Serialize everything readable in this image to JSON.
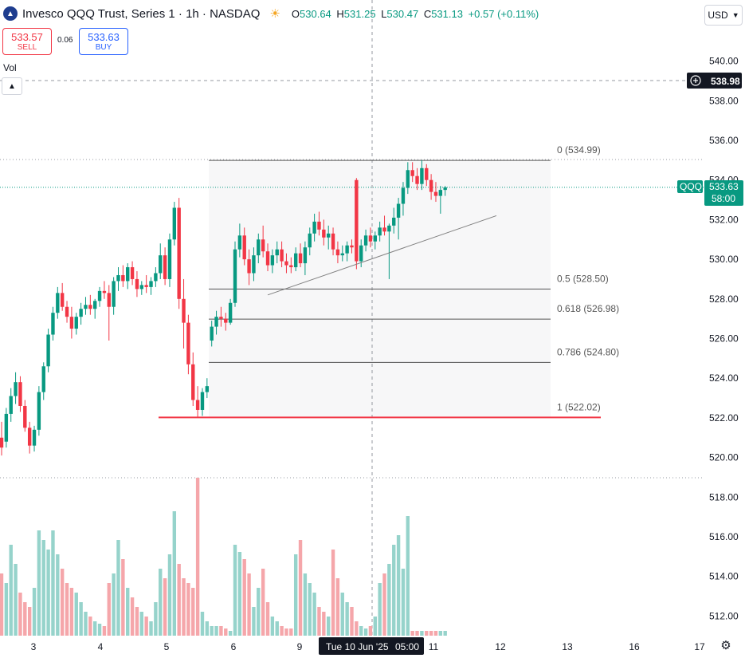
{
  "header": {
    "symbol_title": "Invesco QQQ Trust, Series 1 · 1h · NASDAQ",
    "sun_icon": "sun-icon",
    "ohlc": [
      {
        "k": "O",
        "v": "530.64"
      },
      {
        "k": "H",
        "v": "531.25"
      },
      {
        "k": "L",
        "v": "530.47"
      },
      {
        "k": "C",
        "v": "531.13"
      }
    ],
    "change": "+0.57 (+0.11%)"
  },
  "trade": {
    "sell_price": "533.57",
    "sell_label": "SELL",
    "spread": "0.06",
    "buy_price": "533.63",
    "buy_label": "BUY"
  },
  "vol_label": "Vol",
  "collapse_icon": "chevron-up-icon",
  "currency": "USD",
  "colors": {
    "up": "#089981",
    "down": "#f23645",
    "vol_up": "#96d3cb",
    "vol_down": "#f5a6aa",
    "axis_text": "#131722"
  },
  "axis": {
    "price_ticks": [
      "540.00",
      "538.00",
      "536.00",
      "534.00",
      "532.00",
      "530.00",
      "528.00",
      "526.00",
      "524.00",
      "522.00",
      "520.00",
      "518.00",
      "516.00",
      "514.00",
      "512.00"
    ],
    "date_ticks": [
      "3",
      "4",
      "5",
      "6",
      "9",
      "11",
      "12",
      "13",
      "16",
      "17"
    ],
    "crosshair_date": "Tue 10 Jun '25",
    "crosshair_time": "05:00",
    "crosshair_price": "538.98",
    "last_symbol": "QQQ",
    "last_price": "533.63",
    "countdown": "58:00"
  },
  "fib_levels": [
    {
      "label": "0 (534.99)",
      "price": 534.99
    },
    {
      "label": "0.5 (528.50)",
      "price": 528.5
    },
    {
      "label": "0.618 (526.98)",
      "price": 526.98
    },
    {
      "label": "0.786 (524.80)",
      "price": 524.8
    },
    {
      "label": "1 (522.02)",
      "price": 522.02
    }
  ],
  "chart_data": {
    "type": "candlestick",
    "price_unit": "USD",
    "candles": [
      {
        "o": 521.0,
        "h": 521.8,
        "l": 520.1,
        "c": 520.5
      },
      {
        "o": 520.8,
        "h": 522.5,
        "l": 520.5,
        "c": 522.2
      },
      {
        "o": 522.2,
        "h": 523.5,
        "l": 521.8,
        "c": 523.1
      },
      {
        "o": 523.1,
        "h": 524.3,
        "l": 522.7,
        "c": 523.8
      },
      {
        "o": 523.8,
        "h": 524.1,
        "l": 522.3,
        "c": 522.6
      },
      {
        "o": 522.6,
        "h": 522.9,
        "l": 521.3,
        "c": 521.5
      },
      {
        "o": 521.5,
        "h": 521.8,
        "l": 520.2,
        "c": 520.6
      },
      {
        "o": 520.6,
        "h": 521.6,
        "l": 520.3,
        "c": 521.4
      },
      {
        "o": 521.4,
        "h": 523.6,
        "l": 521.1,
        "c": 523.3
      },
      {
        "o": 523.3,
        "h": 524.8,
        "l": 522.9,
        "c": 524.6
      },
      {
        "o": 524.6,
        "h": 526.5,
        "l": 524.3,
        "c": 526.2
      },
      {
        "o": 526.2,
        "h": 527.6,
        "l": 525.9,
        "c": 527.3
      },
      {
        "o": 527.3,
        "h": 528.6,
        "l": 527.0,
        "c": 528.3
      },
      {
        "o": 528.3,
        "h": 528.8,
        "l": 527.4,
        "c": 527.6
      },
      {
        "o": 527.6,
        "h": 527.9,
        "l": 526.8,
        "c": 527.1
      },
      {
        "o": 527.1,
        "h": 527.6,
        "l": 526.0,
        "c": 526.5
      },
      {
        "o": 526.5,
        "h": 527.3,
        "l": 526.2,
        "c": 527.1
      },
      {
        "o": 527.1,
        "h": 527.8,
        "l": 526.7,
        "c": 527.5
      },
      {
        "o": 527.5,
        "h": 528.1,
        "l": 527.2,
        "c": 527.7
      },
      {
        "o": 527.7,
        "h": 528.2,
        "l": 527.2,
        "c": 527.5
      },
      {
        "o": 527.5,
        "h": 528.0,
        "l": 527.0,
        "c": 527.9
      },
      {
        "o": 527.9,
        "h": 528.6,
        "l": 527.6,
        "c": 528.4
      },
      {
        "o": 528.4,
        "h": 528.9,
        "l": 528.0,
        "c": 528.3
      },
      {
        "o": 528.3,
        "h": 528.7,
        "l": 525.9,
        "c": 527.6
      },
      {
        "o": 527.6,
        "h": 529.1,
        "l": 527.2,
        "c": 528.9
      },
      {
        "o": 528.9,
        "h": 529.6,
        "l": 528.4,
        "c": 529.2
      },
      {
        "o": 529.2,
        "h": 529.7,
        "l": 528.6,
        "c": 528.9
      },
      {
        "o": 528.9,
        "h": 529.8,
        "l": 528.5,
        "c": 529.6
      },
      {
        "o": 529.6,
        "h": 529.9,
        "l": 528.7,
        "c": 529.0
      },
      {
        "o": 529.0,
        "h": 529.4,
        "l": 528.1,
        "c": 528.5
      },
      {
        "o": 528.5,
        "h": 528.9,
        "l": 528.2,
        "c": 528.7
      },
      {
        "o": 528.7,
        "h": 529.2,
        "l": 528.3,
        "c": 528.6
      },
      {
        "o": 528.6,
        "h": 529.1,
        "l": 528.2,
        "c": 528.9
      },
      {
        "o": 528.9,
        "h": 529.6,
        "l": 528.6,
        "c": 529.3
      },
      {
        "o": 529.3,
        "h": 530.8,
        "l": 529.0,
        "c": 530.2
      },
      {
        "o": 530.2,
        "h": 530.6,
        "l": 528.7,
        "c": 529.0
      },
      {
        "o": 529.0,
        "h": 531.3,
        "l": 528.6,
        "c": 531.0
      },
      {
        "o": 531.0,
        "h": 532.9,
        "l": 530.7,
        "c": 532.6
      },
      {
        "o": 532.6,
        "h": 533.1,
        "l": 527.5,
        "c": 528.0
      },
      {
        "o": 528.0,
        "h": 529.0,
        "l": 525.5,
        "c": 526.8
      },
      {
        "o": 526.8,
        "h": 527.2,
        "l": 524.2,
        "c": 524.7
      },
      {
        "o": 524.7,
        "h": 525.3,
        "l": 522.6,
        "c": 522.9
      },
      {
        "o": 522.9,
        "h": 523.6,
        "l": 522.0,
        "c": 522.4
      },
      {
        "o": 522.4,
        "h": 523.5,
        "l": 522.1,
        "c": 523.3
      },
      {
        "o": 523.3,
        "h": 524.0,
        "l": 523.0,
        "c": 523.6
      },
      {
        "o": 525.9,
        "h": 526.9,
        "l": 525.6,
        "c": 526.6
      },
      {
        "o": 526.6,
        "h": 527.4,
        "l": 526.2,
        "c": 527.1
      },
      {
        "o": 527.1,
        "h": 527.6,
        "l": 526.6,
        "c": 527.0
      },
      {
        "o": 527.0,
        "h": 527.3,
        "l": 526.4,
        "c": 526.8
      },
      {
        "o": 526.8,
        "h": 528.0,
        "l": 526.7,
        "c": 527.8
      },
      {
        "o": 527.8,
        "h": 530.9,
        "l": 527.6,
        "c": 530.5
      },
      {
        "o": 530.5,
        "h": 531.8,
        "l": 530.1,
        "c": 531.2
      },
      {
        "o": 531.2,
        "h": 531.6,
        "l": 529.7,
        "c": 530.0
      },
      {
        "o": 530.0,
        "h": 530.5,
        "l": 528.7,
        "c": 529.3
      },
      {
        "o": 529.3,
        "h": 530.6,
        "l": 528.9,
        "c": 530.2
      },
      {
        "o": 530.2,
        "h": 531.3,
        "l": 529.8,
        "c": 531.0
      },
      {
        "o": 531.0,
        "h": 531.7,
        "l": 530.1,
        "c": 530.4
      },
      {
        "o": 530.4,
        "h": 530.8,
        "l": 529.4,
        "c": 529.7
      },
      {
        "o": 529.7,
        "h": 530.5,
        "l": 529.3,
        "c": 530.2
      },
      {
        "o": 530.2,
        "h": 530.9,
        "l": 529.8,
        "c": 530.5
      },
      {
        "o": 530.5,
        "h": 530.9,
        "l": 529.6,
        "c": 529.9
      },
      {
        "o": 529.9,
        "h": 530.3,
        "l": 529.3,
        "c": 529.7
      },
      {
        "o": 529.7,
        "h": 530.1,
        "l": 529.3,
        "c": 529.6
      },
      {
        "o": 529.6,
        "h": 530.6,
        "l": 529.4,
        "c": 530.3
      },
      {
        "o": 530.3,
        "h": 530.8,
        "l": 529.6,
        "c": 529.8
      },
      {
        "o": 529.8,
        "h": 530.9,
        "l": 529.2,
        "c": 530.6
      },
      {
        "o": 530.6,
        "h": 531.6,
        "l": 530.2,
        "c": 531.3
      },
      {
        "o": 531.3,
        "h": 532.3,
        "l": 530.9,
        "c": 531.9
      },
      {
        "o": 531.9,
        "h": 532.4,
        "l": 531.2,
        "c": 531.5
      },
      {
        "o": 531.5,
        "h": 532.0,
        "l": 530.7,
        "c": 531.1
      },
      {
        "o": 531.1,
        "h": 531.7,
        "l": 530.5,
        "c": 531.3
      },
      {
        "o": 531.3,
        "h": 531.6,
        "l": 530.2,
        "c": 530.5
      },
      {
        "o": 530.5,
        "h": 530.9,
        "l": 529.8,
        "c": 530.2
      },
      {
        "o": 530.2,
        "h": 530.7,
        "l": 529.9,
        "c": 530.3
      },
      {
        "o": 530.3,
        "h": 530.9,
        "l": 529.9,
        "c": 530.7
      },
      {
        "o": 530.7,
        "h": 531.0,
        "l": 530.3,
        "c": 530.6
      },
      {
        "o": 534.0,
        "h": 534.1,
        "l": 529.5,
        "c": 529.9
      },
      {
        "o": 529.9,
        "h": 531.0,
        "l": 529.6,
        "c": 530.7
      },
      {
        "o": 530.7,
        "h": 531.5,
        "l": 530.4,
        "c": 531.2
      },
      {
        "o": 531.2,
        "h": 531.6,
        "l": 530.6,
        "c": 530.9
      },
      {
        "o": 530.9,
        "h": 531.4,
        "l": 530.5,
        "c": 531.2
      },
      {
        "o": 531.2,
        "h": 531.9,
        "l": 530.9,
        "c": 531.6
      },
      {
        "o": 531.6,
        "h": 532.2,
        "l": 531.2,
        "c": 531.4
      },
      {
        "o": 531.4,
        "h": 531.8,
        "l": 529.0,
        "c": 531.7
      },
      {
        "o": 531.7,
        "h": 532.6,
        "l": 531.3,
        "c": 532.1
      },
      {
        "o": 532.1,
        "h": 533.1,
        "l": 531.0,
        "c": 532.8
      },
      {
        "o": 532.8,
        "h": 533.9,
        "l": 532.2,
        "c": 533.6
      },
      {
        "o": 533.6,
        "h": 534.9,
        "l": 533.3,
        "c": 534.5
      },
      {
        "o": 534.5,
        "h": 534.9,
        "l": 533.9,
        "c": 534.2
      },
      {
        "o": 534.2,
        "h": 534.6,
        "l": 533.5,
        "c": 533.8
      },
      {
        "o": 533.8,
        "h": 535.0,
        "l": 533.5,
        "c": 534.6
      },
      {
        "o": 534.6,
        "h": 534.8,
        "l": 533.7,
        "c": 534.0
      },
      {
        "o": 534.0,
        "h": 534.3,
        "l": 533.0,
        "c": 533.4
      },
      {
        "o": 533.4,
        "h": 533.9,
        "l": 532.9,
        "c": 533.2
      },
      {
        "o": 533.2,
        "h": 533.7,
        "l": 532.3,
        "c": 533.5
      },
      {
        "o": 533.5,
        "h": 533.7,
        "l": 533.2,
        "c": 533.63
      }
    ],
    "volume": [
      26,
      22,
      38,
      30,
      18,
      14,
      12,
      20,
      44,
      40,
      36,
      44,
      34,
      28,
      22,
      20,
      18,
      14,
      10,
      8,
      6,
      5,
      4,
      22,
      26,
      40,
      32,
      20,
      16,
      12,
      10,
      8,
      6,
      14,
      28,
      24,
      34,
      52,
      30,
      24,
      22,
      20,
      66,
      10,
      6,
      4,
      4,
      4,
      3,
      2,
      38,
      35,
      32,
      26,
      12,
      20,
      28,
      14,
      8,
      6,
      4,
      3,
      3,
      34,
      40,
      26,
      22,
      18,
      12,
      10,
      8,
      36,
      24,
      18,
      14,
      12,
      6,
      4,
      3,
      4,
      8,
      22,
      26,
      30,
      38,
      42,
      28,
      50,
      2,
      2,
      2,
      2,
      2,
      2,
      2,
      2
    ],
    "ylim": [
      511,
      541
    ],
    "trendline": [
      {
        "i": 49,
        "p": 528.2
      },
      {
        "i": 88,
        "p": 531.2
      }
    ]
  }
}
